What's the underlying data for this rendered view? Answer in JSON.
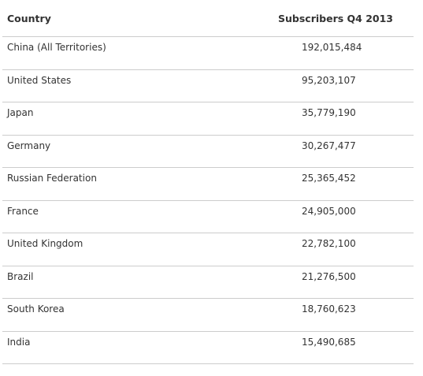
{
  "table": {
    "headers": {
      "country": "Country",
      "subscribers": "Subscribers Q4 2013"
    },
    "rows": [
      {
        "country": "China (All Territories)",
        "subscribers": "192,015,484"
      },
      {
        "country": "United States",
        "subscribers": "95,203,107"
      },
      {
        "country": "Japan",
        "subscribers": "35,779,190"
      },
      {
        "country": "Germany",
        "subscribers": "30,267,477"
      },
      {
        "country": "Russian Federation",
        "subscribers": "25,365,452"
      },
      {
        "country": "France",
        "subscribers": "24,905,000"
      },
      {
        "country": "United Kingdom",
        "subscribers": "22,782,100"
      },
      {
        "country": "Brazil",
        "subscribers": "21,276,500"
      },
      {
        "country": "South Korea",
        "subscribers": "18,760,623"
      },
      {
        "country": "India",
        "subscribers": "15,490,685"
      }
    ]
  }
}
